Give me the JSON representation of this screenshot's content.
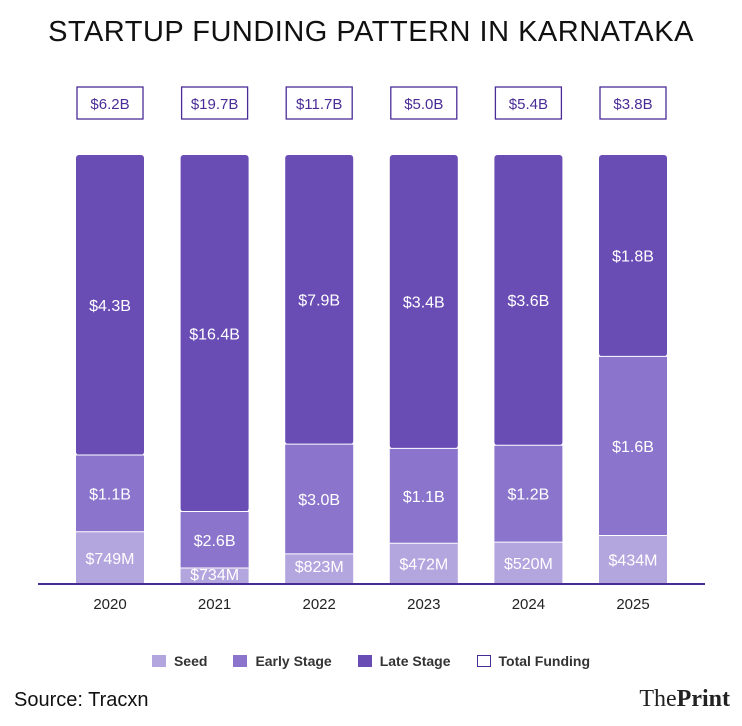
{
  "chart_data": {
    "type": "bar",
    "stacked": true,
    "title": "STARTUP FUNDING PATTERN IN KARNATAKA",
    "categories": [
      "2020",
      "2021",
      "2022",
      "2023",
      "2024",
      "2025"
    ],
    "series": [
      {
        "name": "Seed",
        "color": "#b3a5de",
        "values": [
          0.749,
          0.734,
          0.823,
          0.472,
          0.52,
          0.434
        ],
        "labels": [
          "$749M",
          "$734M",
          "$823M",
          "$472M",
          "$520M",
          "$434M"
        ]
      },
      {
        "name": "Early Stage",
        "color": "#8b75cc",
        "values": [
          1.1,
          2.6,
          3.0,
          1.1,
          1.2,
          1.6
        ],
        "labels": [
          "$1.1B",
          "$2.6B",
          "$3.0B",
          "$1.1B",
          "$1.2B",
          "$1.6B"
        ]
      },
      {
        "name": "Late Stage",
        "color": "#6a4cb5",
        "values": [
          4.3,
          16.4,
          7.9,
          3.4,
          3.6,
          1.8
        ],
        "labels": [
          "$4.3B",
          "$16.4B",
          "$7.9B",
          "$3.4B",
          "$3.6B",
          "$1.8B"
        ]
      }
    ],
    "totals": {
      "name": "Total Funding",
      "values": [
        6.2,
        19.7,
        11.7,
        5.0,
        5.4,
        3.8
      ],
      "labels": [
        "$6.2B",
        "$19.7B",
        "$11.7B",
        "$5.0B",
        "$5.4B",
        "$3.8B"
      ]
    },
    "xlabel": "",
    "ylabel": "",
    "normalized": true,
    "legend_position": "bottom"
  },
  "colors": {
    "axis": "#4a2c96",
    "total_border": "#4a2c96",
    "total_text": "#4a2c96",
    "segment_text": "#ffffff"
  },
  "footer": {
    "source": "Source: Tracxn",
    "brand_the": "The",
    "brand_print": "Print"
  }
}
